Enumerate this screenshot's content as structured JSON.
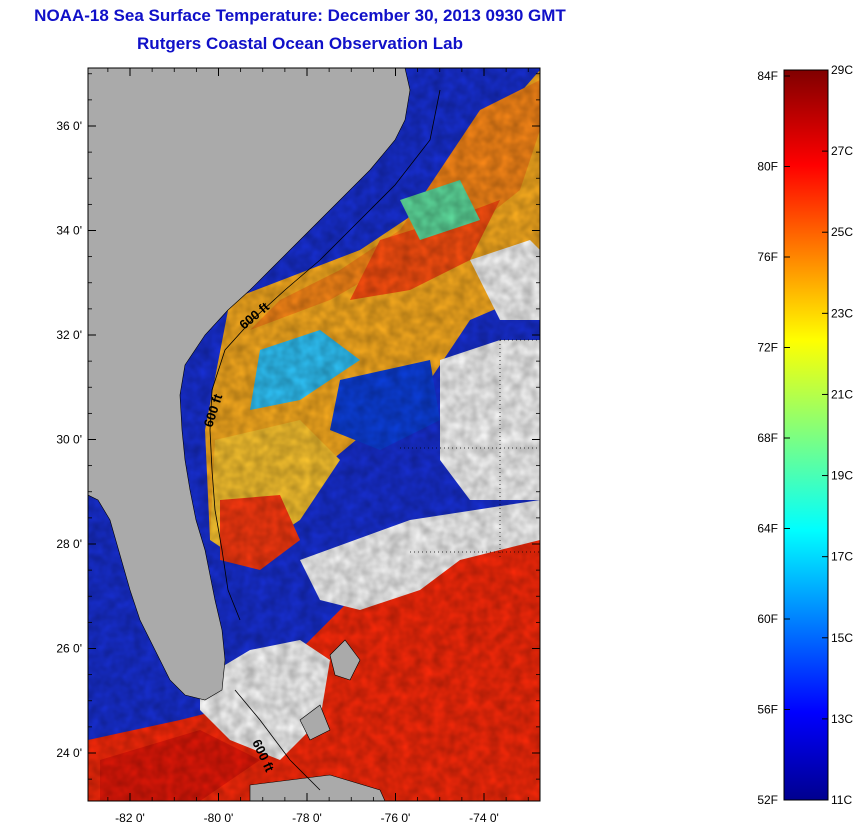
{
  "header": {
    "title": "NOAA-18 Sea Surface Temperature:  December 30, 2013 0930 GMT",
    "subtitle": "Rutgers Coastal Ocean Observation Lab"
  },
  "map": {
    "lat_ticks": [
      "24 0'",
      "26 0'",
      "28 0'",
      "30 0'",
      "32 0'",
      "34 0'",
      "36 0'"
    ],
    "lon_ticks": [
      "-82 0'",
      "-80 0'",
      "-78 0'",
      "-76 0'",
      "-74 0'"
    ],
    "contour_labels": [
      "600 ft",
      "600 ft",
      "600 ft"
    ],
    "land_color": "#aaaaaa",
    "cloud_color": "#ffffff"
  },
  "colorbar": {
    "fahrenheit": [
      "84F",
      "80F",
      "76F",
      "72F",
      "68F",
      "64F",
      "60F",
      "56F",
      "52F"
    ],
    "celsius": [
      "29C",
      "27C",
      "25C",
      "23C",
      "21C",
      "19C",
      "17C",
      "15C",
      "13C",
      "11C"
    ],
    "colormap": "jet"
  }
}
